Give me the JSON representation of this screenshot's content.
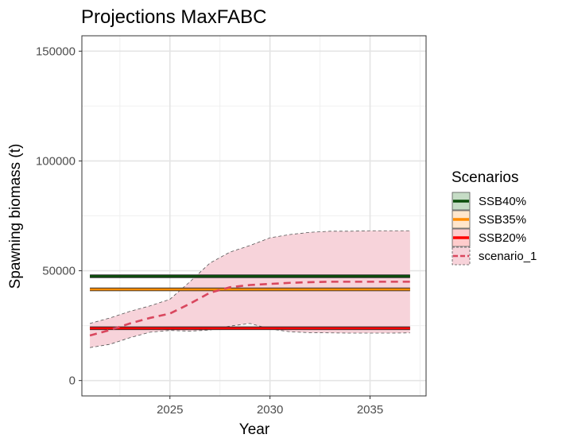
{
  "chart_data": {
    "type": "line",
    "title": "Projections MaxFABC",
    "xlabel": "Year",
    "ylabel": "Spawning biomass (t)",
    "xlim": [
      2020.6,
      2037.8
    ],
    "ylim": [
      -7000,
      157000
    ],
    "x_ticks": [
      2025,
      2030,
      2035
    ],
    "x_tick_labels": [
      "2025",
      "2030",
      "2035"
    ],
    "y_ticks": [
      0,
      50000,
      100000,
      150000
    ],
    "y_tick_labels": [
      "0",
      "50000",
      "100000",
      "150000"
    ],
    "grid": true,
    "legend": {
      "title": "Scenarios",
      "position": "right",
      "entries": [
        "SSB40%",
        "SSB35%",
        "SSB20%",
        "scenario_1"
      ]
    },
    "colors": {
      "ssb40": "#0a4d0a",
      "ssb35": "#ff8c00",
      "ssb20": "#ff0000",
      "scenario": "#d9475e",
      "ribbon_fill": "#f7d3da",
      "ssb40_key_fill": "#c5dcc5",
      "ssb35_key_fill": "#ffe6cc",
      "ssb20_key_fill": "#ffcccc"
    },
    "series": [
      {
        "name": "SSB40%",
        "kind": "hline",
        "y": 47500
      },
      {
        "name": "SSB35%",
        "kind": "hline",
        "y": 41500
      },
      {
        "name": "SSB20%",
        "kind": "hline",
        "y": 23800
      },
      {
        "name": "scenario_1",
        "kind": "line_ribbon",
        "x": [
          2021,
          2022,
          2023,
          2024,
          2025,
          2026,
          2027,
          2028,
          2029,
          2030,
          2031,
          2032,
          2033,
          2034,
          2035,
          2036,
          2037
        ],
        "y": [
          20500,
          23000,
          26000,
          28500,
          30500,
          35000,
          40000,
          42500,
          43500,
          44000,
          44500,
          44800,
          45000,
          45000,
          45000,
          45000,
          45000
        ],
        "lower": [
          15000,
          16500,
          19500,
          22000,
          22800,
          22500,
          23000,
          24800,
          26000,
          23500,
          22200,
          21800,
          21700,
          21600,
          21600,
          21600,
          21700
        ],
        "upper": [
          26000,
          28500,
          31500,
          34000,
          37000,
          45000,
          53500,
          58500,
          61500,
          65000,
          66500,
          67500,
          68000,
          68000,
          68200,
          68200,
          68200
        ]
      }
    ]
  }
}
